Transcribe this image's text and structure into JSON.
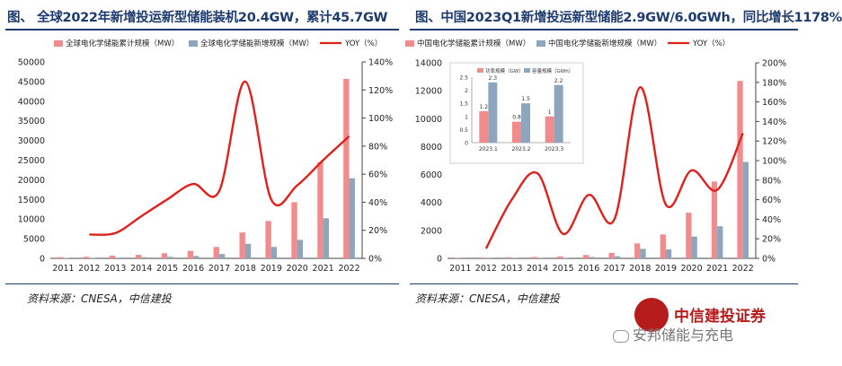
{
  "left": {
    "title": "图、 全球2022年新增投运新型储能装机20.4GW，累计45.7GW",
    "source": "资料来源：CNESA，中信建投"
  },
  "right": {
    "title": "图、中国2023Q1新增投运新型储能2.9GW/6.0GWh，同比增长1178%",
    "source": "资料来源：CNESA，中信建投"
  },
  "logo": {
    "text": "中信建投证券"
  },
  "watermark": {
    "text": "安邦储能与充电"
  },
  "colors": {
    "bar_a": "#f28b8b",
    "bar_b": "#8ea6bd",
    "line": "#e0201b"
  },
  "chart_data": [
    {
      "type": "bar",
      "categories": [
        "2011",
        "2012",
        "2013",
        "2014",
        "2015",
        "2016",
        "2017",
        "2018",
        "2019",
        "2020",
        "2021",
        "2022"
      ],
      "series": [
        {
          "name": "全球电化学储能累计规模（MW）",
          "kind": "bar",
          "axis": "left",
          "values": [
            300,
            400,
            700,
            900,
            1300,
            1900,
            2900,
            6600,
            9500,
            14300,
            24500,
            45700
          ]
        },
        {
          "name": "全球电化学储能新增规模（MW）",
          "kind": "bar",
          "axis": "left",
          "values": [
            100,
            100,
            200,
            300,
            400,
            600,
            1100,
            3700,
            2900,
            4700,
            10200,
            20400
          ]
        },
        {
          "name": "YOY（%）",
          "kind": "line",
          "axis": "right",
          "values": [
            null,
            17,
            18,
            30,
            42,
            53,
            48,
            126,
            42,
            52,
            70,
            87
          ]
        }
      ],
      "ylim": [
        0,
        50000
      ],
      "yticks": [
        "0",
        "5000",
        "10000",
        "15000",
        "20000",
        "25000",
        "30000",
        "35000",
        "40000",
        "45000",
        "50000"
      ],
      "y2lim": [
        0,
        140
      ],
      "y2ticks": [
        "0%",
        "20%",
        "40%",
        "60%",
        "80%",
        "100%",
        "120%",
        "140%"
      ],
      "legend": "top"
    },
    {
      "type": "bar",
      "categories": [
        "2011",
        "2012",
        "2013",
        "2014",
        "2015",
        "2016",
        "2017",
        "2018",
        "2019",
        "2020",
        "2021",
        "2022"
      ],
      "series": [
        {
          "name": "中国电化学储能累计规模（MW）",
          "kind": "bar",
          "axis": "left",
          "values": [
            40,
            60,
            80,
            100,
            140,
            240,
            390,
            1070,
            1710,
            3270,
            5500,
            12700
          ]
        },
        {
          "name": "中国电化学储能新增规模（MW）",
          "kind": "bar",
          "axis": "left",
          "values": [
            10,
            20,
            20,
            20,
            40,
            100,
            150,
            680,
            640,
            1560,
            2300,
            6900
          ]
        },
        {
          "name": "YOY（%）",
          "kind": "line",
          "axis": "right",
          "values": [
            null,
            10,
            60,
            87,
            25,
            65,
            40,
            175,
            55,
            90,
            70,
            128
          ]
        }
      ],
      "ylim": [
        0,
        14000
      ],
      "yticks": [
        "0",
        "2000",
        "4000",
        "6000",
        "8000",
        "10000",
        "12000",
        "14000"
      ],
      "y2lim": [
        0,
        200
      ],
      "y2ticks": [
        "0%",
        "20%",
        "40%",
        "60%",
        "80%",
        "100%",
        "120%",
        "140%",
        "160%",
        "180%",
        "200%"
      ],
      "legend": "top",
      "inset": {
        "type": "bar",
        "categories": [
          "2023.1",
          "2023.2",
          "2023.3"
        ],
        "series": [
          {
            "name": "功率规模（GW）",
            "values": [
              1.2,
              0.8,
              1
            ]
          },
          {
            "name": "容量规模（GWh）",
            "values": [
              2.3,
              1.5,
              2.2
            ]
          }
        ],
        "ylim": [
          0,
          2.5
        ],
        "yticks": [
          "0",
          "0.5",
          "1",
          "1.5",
          "2",
          "2.5"
        ],
        "labels_a": [
          "1.2",
          "0.8",
          "1"
        ],
        "labels_b": [
          "2.3",
          "1.5",
          "2.2"
        ]
      }
    }
  ]
}
